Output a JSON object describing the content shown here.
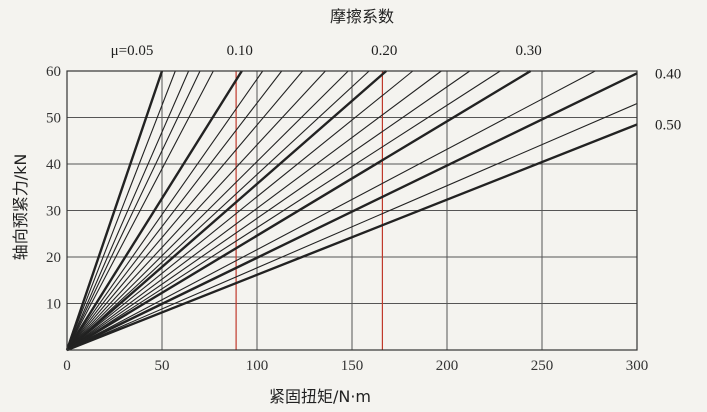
{
  "chart_data": {
    "type": "line",
    "title": "摩擦系数",
    "xlabel": "紧固扭矩/N·m",
    "ylabel": "轴向预紧力/kN",
    "xlim": [
      0,
      300
    ],
    "ylim": [
      0,
      60
    ],
    "xticks": [
      "0",
      "50",
      "100",
      "150",
      "200",
      "250",
      "300"
    ],
    "yticks": [
      "10",
      "20",
      "30",
      "40",
      "50",
      "60"
    ],
    "grid": true,
    "reference_lines": {
      "x": [
        89,
        166
      ],
      "color": "#c0392b"
    },
    "mu_label_prefix": "μ=",
    "series": [
      {
        "name": "0.05",
        "x": [
          0,
          50
        ],
        "y": [
          0,
          60
        ],
        "bold": true,
        "labeled": true
      },
      {
        "name": "",
        "x": [
          0,
          57
        ],
        "y": [
          0,
          60
        ],
        "bold": false,
        "labeled": false
      },
      {
        "name": "",
        "x": [
          0,
          64
        ],
        "y": [
          0,
          60
        ],
        "bold": false,
        "labeled": false
      },
      {
        "name": "",
        "x": [
          0,
          70
        ],
        "y": [
          0,
          60
        ],
        "bold": false,
        "labeled": false
      },
      {
        "name": "",
        "x": [
          0,
          77
        ],
        "y": [
          0,
          60
        ],
        "bold": false,
        "labeled": false
      },
      {
        "name": "0.10",
        "x": [
          0,
          92
        ],
        "y": [
          0,
          60
        ],
        "bold": true,
        "labeled": true
      },
      {
        "name": "",
        "x": [
          0,
          103
        ],
        "y": [
          0,
          60
        ],
        "bold": false,
        "labeled": false
      },
      {
        "name": "",
        "x": [
          0,
          113
        ],
        "y": [
          0,
          60
        ],
        "bold": false,
        "labeled": false
      },
      {
        "name": "",
        "x": [
          0,
          124
        ],
        "y": [
          0,
          60
        ],
        "bold": false,
        "labeled": false
      },
      {
        "name": "",
        "x": [
          0,
          136
        ],
        "y": [
          0,
          60
        ],
        "bold": false,
        "labeled": false
      },
      {
        "name": "",
        "x": [
          0,
          148
        ],
        "y": [
          0,
          60
        ],
        "bold": false,
        "labeled": false
      },
      {
        "name": "",
        "x": [
          0,
          159
        ],
        "y": [
          0,
          60
        ],
        "bold": false,
        "labeled": false
      },
      {
        "name": "0.20",
        "x": [
          0,
          168
        ],
        "y": [
          0,
          60
        ],
        "bold": true,
        "labeled": true
      },
      {
        "name": "",
        "x": [
          0,
          182
        ],
        "y": [
          0,
          60
        ],
        "bold": false,
        "labeled": false
      },
      {
        "name": "",
        "x": [
          0,
          197
        ],
        "y": [
          0,
          60
        ],
        "bold": false,
        "labeled": false
      },
      {
        "name": "",
        "x": [
          0,
          212
        ],
        "y": [
          0,
          60
        ],
        "bold": false,
        "labeled": false
      },
      {
        "name": "",
        "x": [
          0,
          228
        ],
        "y": [
          0,
          60
        ],
        "bold": false,
        "labeled": false
      },
      {
        "name": "0.30",
        "x": [
          0,
          244
        ],
        "y": [
          0,
          60
        ],
        "bold": true,
        "labeled": true
      },
      {
        "name": "",
        "x": [
          0,
          278
        ],
        "y": [
          0,
          60
        ],
        "bold": false,
        "labeled": false
      },
      {
        "name": "0.40",
        "x": [
          0,
          300
        ],
        "y": [
          0,
          59.5
        ],
        "bold": true,
        "labeled": true
      },
      {
        "name": "",
        "x": [
          0,
          300
        ],
        "y": [
          0,
          53
        ],
        "bold": false,
        "labeled": false
      },
      {
        "name": "0.50",
        "x": [
          0,
          300
        ],
        "y": [
          0,
          48.5
        ],
        "bold": true,
        "labeled": true
      }
    ]
  }
}
